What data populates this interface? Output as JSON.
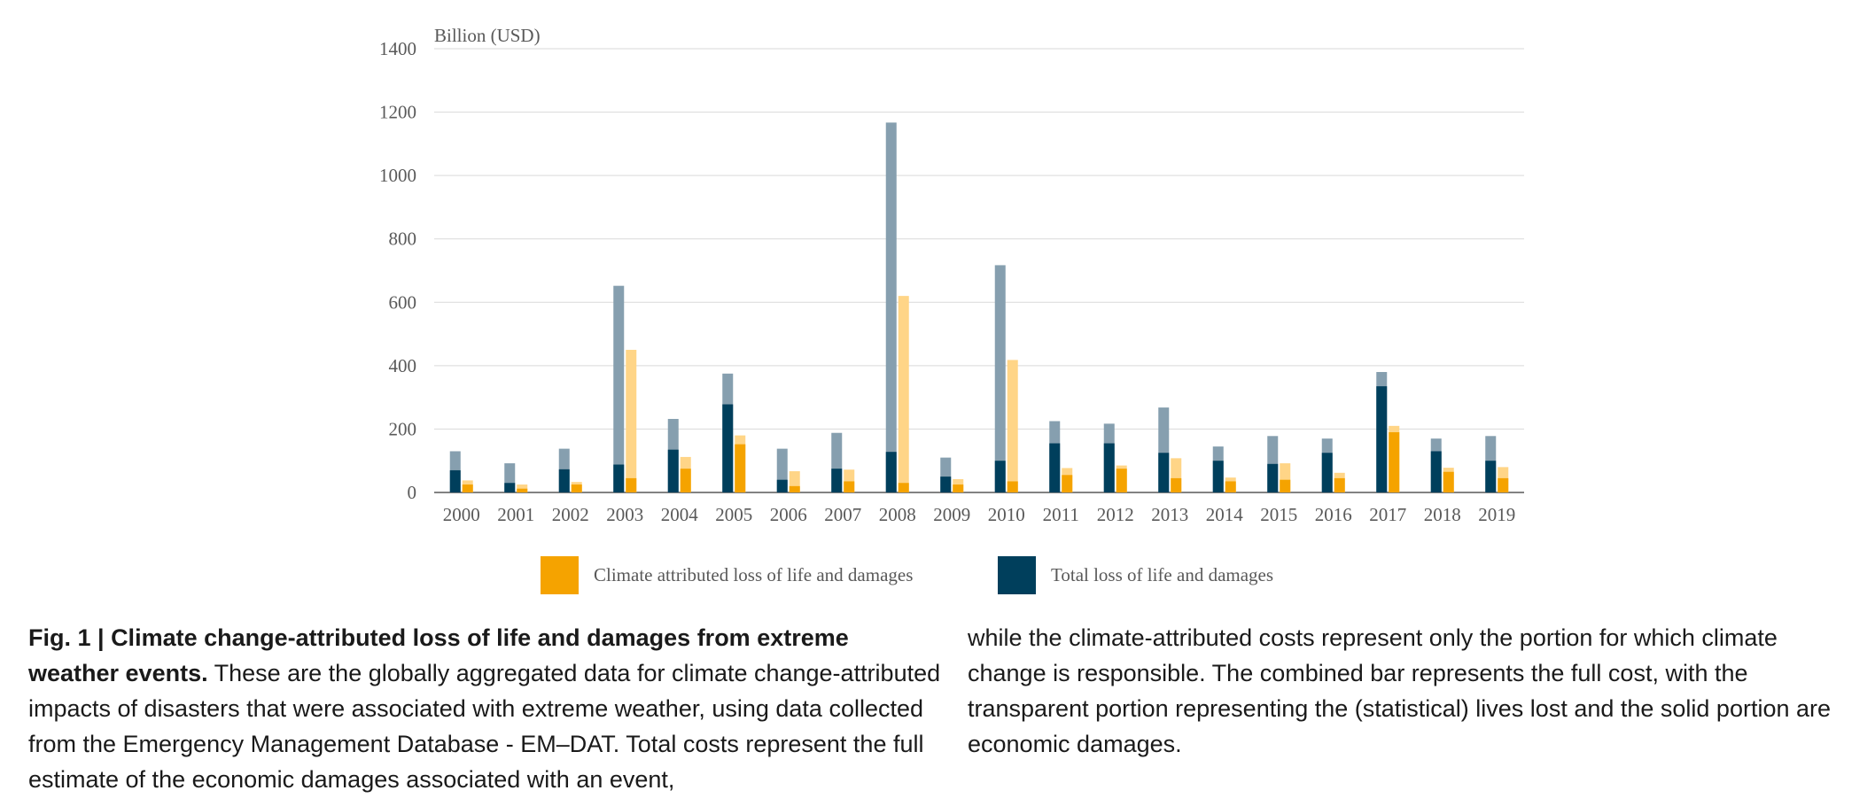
{
  "chart_data": {
    "type": "bar",
    "unit_label": "Billion (USD)",
    "ylim": [
      0,
      1400
    ],
    "yticks": [
      0,
      200,
      400,
      600,
      800,
      1000,
      1200,
      1400
    ],
    "grid": true,
    "categories": [
      "2000",
      "2001",
      "2002",
      "2003",
      "2004",
      "2005",
      "2006",
      "2007",
      "2008",
      "2009",
      "2010",
      "2011",
      "2012",
      "2013",
      "2014",
      "2015",
      "2016",
      "2017",
      "2018",
      "2019"
    ],
    "series": [
      {
        "name": "Total loss of life and damages",
        "economic_damages": [
          70,
          30,
          73,
          88,
          135,
          278,
          40,
          75,
          128,
          50,
          100,
          155,
          155,
          125,
          100,
          90,
          125,
          335,
          130,
          100
        ],
        "total": [
          130,
          92,
          138,
          652,
          232,
          375,
          138,
          188,
          1167,
          110,
          717,
          225,
          217,
          268,
          145,
          178,
          170,
          380,
          170,
          178
        ]
      },
      {
        "name": "Climate attributed loss of life and damages",
        "economic_damages": [
          25,
          12,
          25,
          45,
          75,
          152,
          20,
          35,
          30,
          25,
          35,
          55,
          75,
          45,
          35,
          40,
          45,
          190,
          65,
          45
        ],
        "total": [
          38,
          25,
          33,
          450,
          112,
          180,
          67,
          72,
          620,
          42,
          418,
          77,
          85,
          108,
          47,
          92,
          62,
          210,
          78,
          80
        ]
      }
    ],
    "colors": {
      "total_solid": "#003f5c",
      "total_transparent": "#869faf",
      "climate_solid": "#f5a300",
      "climate_transparent": "#ffd587",
      "grid": "#d9d9d9",
      "axis": "#595959"
    },
    "legend": {
      "placement": "bottom-center",
      "items": [
        {
          "label": "Climate attributed loss of life and damages",
          "color": "#f5a300"
        },
        {
          "label": "Total loss of life and damages",
          "color": "#003f5c"
        }
      ]
    }
  },
  "caption": {
    "title": "Fig. 1 | Climate change-attributed loss of life and damages from extreme weather events.",
    "text_left": " These are the globally aggregated data for climate change-attributed impacts of disasters that were associated with extreme weather, using data collected from the Emergency Management Database - EM–DAT. Total costs represent the full estimate of the economic damages associated with an event,",
    "text_right": "while the climate-attributed costs represent only the portion for which climate change is responsible. The combined bar represents the full cost, with the transparent portion representing the (statistical) lives lost and the solid portion are economic damages."
  }
}
